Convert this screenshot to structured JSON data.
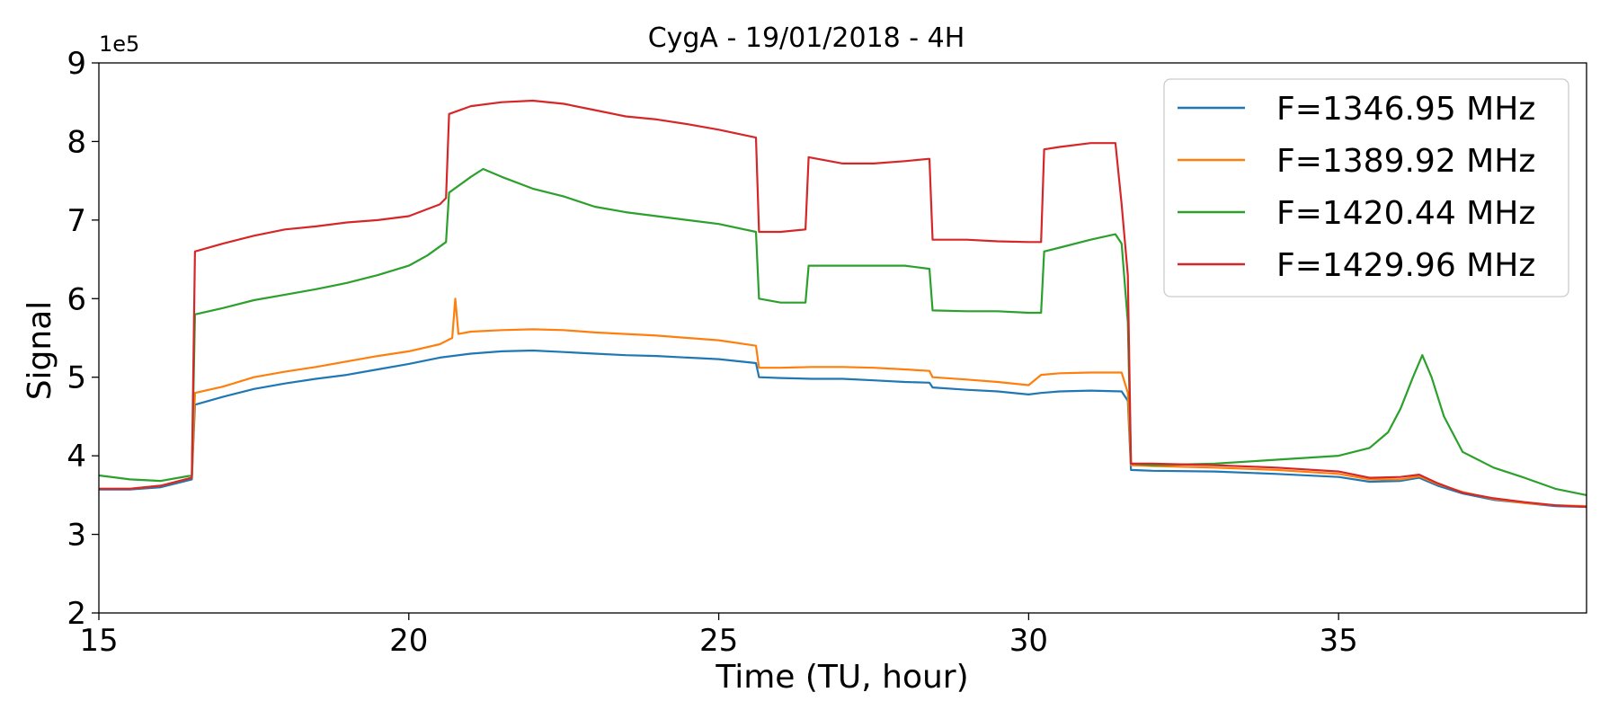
{
  "chart_data": {
    "type": "line",
    "title": "CygA - 19/01/2018 - 4H",
    "xlabel": "Time (TU, hour)",
    "ylabel": "Signal",
    "y_offset_label": "1e5",
    "xlim": [
      15,
      39
    ],
    "ylim": [
      2,
      9
    ],
    "x_ticks": [
      15,
      20,
      25,
      30,
      35
    ],
    "x_tick_labels": [
      "15",
      "20",
      "25",
      "30",
      "35"
    ],
    "y_ticks": [
      2,
      3,
      4,
      5,
      6,
      7,
      8,
      9
    ],
    "y_tick_labels": [
      "2",
      "3",
      "4",
      "5",
      "6",
      "7",
      "8",
      "9"
    ],
    "grid": false,
    "legend_position": "top-right",
    "series": [
      {
        "name": "F=1346.95 MHz",
        "color": "#1f77b4",
        "x": [
          15,
          15.5,
          16,
          16.5,
          16.55,
          17,
          17.5,
          18,
          18.5,
          19,
          19.5,
          20,
          20.5,
          21,
          21.5,
          22,
          22.5,
          23,
          23.5,
          24,
          24.5,
          25,
          25.6,
          25.65,
          26,
          26.5,
          27,
          27.5,
          28,
          28.4,
          28.45,
          29,
          29.5,
          30,
          30.2,
          30.5,
          31,
          31.5,
          31.6,
          31.65,
          32,
          33,
          34,
          35,
          35.5,
          36,
          36.3,
          36.6,
          37,
          37.5,
          38,
          38.5,
          39
        ],
        "y": [
          3.57,
          3.57,
          3.6,
          3.7,
          4.65,
          4.75,
          4.85,
          4.92,
          4.98,
          5.03,
          5.1,
          5.17,
          5.25,
          5.3,
          5.33,
          5.34,
          5.32,
          5.3,
          5.28,
          5.27,
          5.25,
          5.23,
          5.18,
          5.0,
          4.99,
          4.98,
          4.98,
          4.96,
          4.94,
          4.93,
          4.87,
          4.84,
          4.82,
          4.78,
          4.8,
          4.82,
          4.83,
          4.82,
          4.7,
          3.82,
          3.81,
          3.8,
          3.77,
          3.73,
          3.67,
          3.68,
          3.72,
          3.62,
          3.52,
          3.44,
          3.4,
          3.36,
          3.35
        ]
      },
      {
        "name": "F=1389.92 MHz",
        "color": "#ff7f0e",
        "x": [
          15,
          15.5,
          16,
          16.5,
          16.55,
          17,
          17.5,
          18,
          18.5,
          19,
          19.5,
          20,
          20.5,
          20.7,
          20.75,
          20.8,
          21,
          21.5,
          22,
          22.5,
          23,
          23.5,
          24,
          24.5,
          25,
          25.6,
          25.65,
          26,
          26.5,
          27,
          27.5,
          28,
          28.4,
          28.45,
          29,
          29.5,
          30,
          30.2,
          30.5,
          31,
          31.5,
          31.6,
          31.65,
          32,
          33,
          34,
          35,
          35.5,
          36,
          36.3,
          36.6,
          37,
          37.5,
          38,
          38.5,
          39
        ],
        "y": [
          3.58,
          3.58,
          3.62,
          3.72,
          4.8,
          4.88,
          5.0,
          5.07,
          5.13,
          5.2,
          5.27,
          5.33,
          5.42,
          5.5,
          6.0,
          5.55,
          5.58,
          5.6,
          5.61,
          5.6,
          5.57,
          5.55,
          5.53,
          5.5,
          5.47,
          5.4,
          5.12,
          5.12,
          5.13,
          5.13,
          5.12,
          5.1,
          5.08,
          5.0,
          4.97,
          4.94,
          4.9,
          5.03,
          5.05,
          5.06,
          5.06,
          4.8,
          3.88,
          3.87,
          3.85,
          3.82,
          3.77,
          3.7,
          3.7,
          3.74,
          3.64,
          3.54,
          3.45,
          3.4,
          3.37,
          3.36
        ]
      },
      {
        "name": "F=1420.44 MHz",
        "color": "#2ca02c",
        "x": [
          15,
          15.5,
          16,
          16.5,
          16.55,
          17,
          17.5,
          18,
          18.5,
          19,
          19.5,
          20,
          20.3,
          20.6,
          20.65,
          21,
          21.2,
          21.5,
          22,
          22.5,
          23,
          23.5,
          24,
          24.5,
          25,
          25.6,
          25.65,
          26,
          26.4,
          26.45,
          27,
          27.5,
          28,
          28.4,
          28.45,
          29,
          29.5,
          30,
          30.2,
          30.25,
          30.5,
          31,
          31.4,
          31.5,
          31.6,
          31.65,
          32,
          33,
          34,
          35,
          35.5,
          35.8,
          36,
          36.2,
          36.35,
          36.5,
          36.7,
          37,
          37.5,
          38,
          38.5,
          39
        ],
        "y": [
          3.75,
          3.7,
          3.68,
          3.75,
          5.8,
          5.88,
          5.98,
          6.05,
          6.12,
          6.2,
          6.3,
          6.42,
          6.55,
          6.72,
          7.35,
          7.55,
          7.65,
          7.55,
          7.4,
          7.3,
          7.17,
          7.1,
          7.05,
          7.0,
          6.95,
          6.85,
          6.0,
          5.95,
          5.95,
          6.42,
          6.42,
          6.42,
          6.42,
          6.38,
          5.85,
          5.84,
          5.84,
          5.82,
          5.82,
          6.6,
          6.65,
          6.75,
          6.82,
          6.7,
          5.7,
          3.9,
          3.88,
          3.9,
          3.95,
          4.0,
          4.1,
          4.3,
          4.6,
          5.0,
          5.28,
          5.0,
          4.5,
          4.05,
          3.85,
          3.72,
          3.58,
          3.5
        ]
      },
      {
        "name": "F=1429.96 MHz",
        "color": "#d62728",
        "x": [
          15,
          15.5,
          16,
          16.5,
          16.55,
          17,
          17.5,
          18,
          18.5,
          19,
          19.5,
          20,
          20.5,
          20.6,
          20.65,
          21,
          21.5,
          22,
          22.5,
          23,
          23.5,
          24,
          24.5,
          25,
          25.6,
          25.65,
          26,
          26.4,
          26.45,
          27,
          27.5,
          28,
          28.4,
          28.45,
          29,
          29.5,
          30,
          30.2,
          30.25,
          30.5,
          31,
          31.4,
          31.5,
          31.6,
          31.65,
          32,
          33,
          34,
          35,
          35.5,
          36,
          36.3,
          36.6,
          37,
          37.5,
          38,
          38.5,
          39
        ],
        "y": [
          3.58,
          3.58,
          3.62,
          3.72,
          6.6,
          6.7,
          6.8,
          6.88,
          6.92,
          6.97,
          7.0,
          7.05,
          7.2,
          7.28,
          8.35,
          8.45,
          8.5,
          8.52,
          8.48,
          8.4,
          8.32,
          8.28,
          8.22,
          8.15,
          8.05,
          6.85,
          6.85,
          6.88,
          7.8,
          7.72,
          7.72,
          7.75,
          7.78,
          6.75,
          6.75,
          6.73,
          6.72,
          6.72,
          7.9,
          7.93,
          7.98,
          7.98,
          7.2,
          6.3,
          3.9,
          3.9,
          3.88,
          3.85,
          3.8,
          3.72,
          3.73,
          3.76,
          3.65,
          3.53,
          3.46,
          3.41,
          3.37,
          3.35
        ]
      }
    ]
  }
}
